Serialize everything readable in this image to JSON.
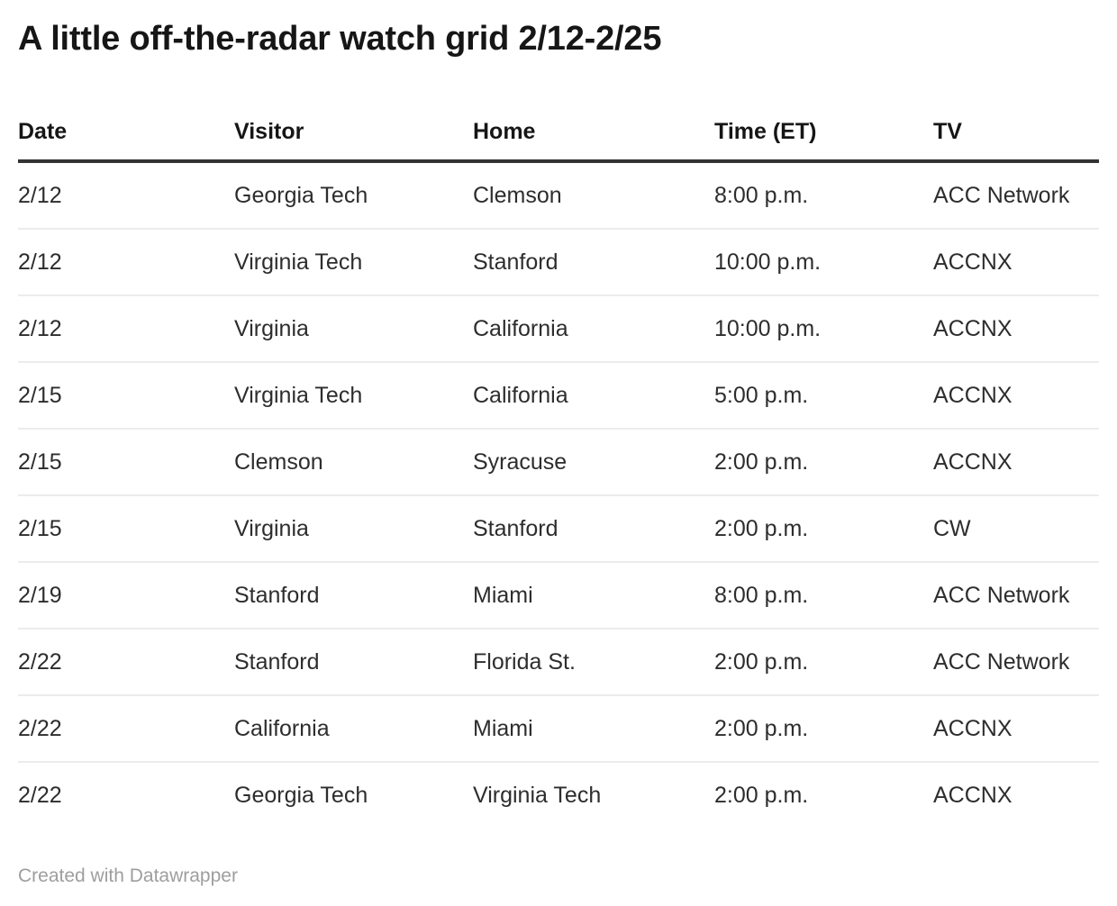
{
  "chart_data": {
    "type": "table",
    "title": "A little off-the-radar watch grid 2/12-2/25",
    "columns": [
      "Date",
      "Visitor",
      "Home",
      "Time (ET)",
      "TV"
    ],
    "rows": [
      [
        "2/12",
        "Georgia Tech",
        "Clemson",
        "8:00 p.m.",
        "ACC Network"
      ],
      [
        "2/12",
        "Virginia Tech",
        "Stanford",
        "10:00 p.m.",
        "ACCNX"
      ],
      [
        "2/12",
        "Virginia",
        "California",
        "10:00 p.m.",
        "ACCNX"
      ],
      [
        "2/15",
        "Virginia Tech",
        "California",
        "5:00 p.m.",
        "ACCNX"
      ],
      [
        "2/15",
        "Clemson",
        "Syracuse",
        "2:00 p.m.",
        "ACCNX"
      ],
      [
        "2/15",
        "Virginia",
        "Stanford",
        "2:00 p.m.",
        "CW"
      ],
      [
        "2/19",
        "Stanford",
        "Miami",
        "8:00 p.m.",
        "ACC Network"
      ],
      [
        "2/22",
        "Stanford",
        "Florida St.",
        "2:00 p.m.",
        "ACC Network"
      ],
      [
        "2/22",
        "California",
        "Miami",
        "2:00 p.m.",
        "ACCNX"
      ],
      [
        "2/22",
        "Georgia Tech",
        "Virginia Tech",
        "2:00 p.m.",
        "ACCNX"
      ]
    ],
    "layout": {
      "grid": "horizontal-row-dividers-only",
      "header_rule": true
    }
  },
  "footer": {
    "attribution": "Created with Datawrapper"
  },
  "colors": {
    "background": "#ffffff",
    "title_text": "#161616",
    "header_text": "#161616",
    "body_text": "#2d2d2d",
    "header_rule": "#333333",
    "row_divider": "#ececec",
    "footer_text": "#9e9e9e"
  }
}
